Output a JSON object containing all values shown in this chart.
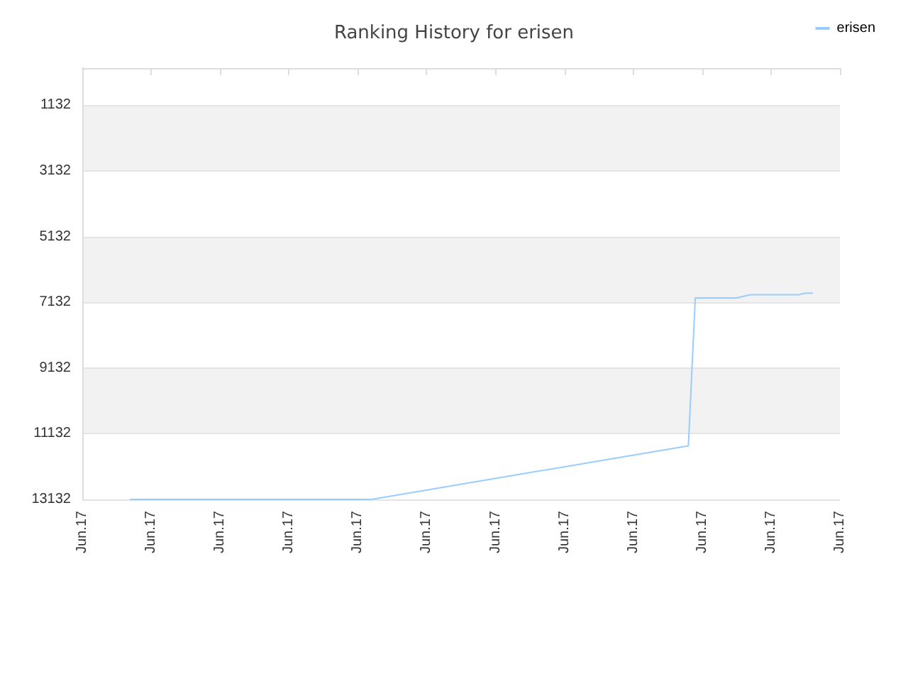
{
  "chart_data": {
    "type": "line",
    "title": "Ranking History for erisen",
    "categories": [
      "Jun.17",
      null,
      null,
      null,
      null,
      null,
      null,
      null,
      null,
      null,
      "Jun.17",
      null,
      null,
      null,
      null,
      null,
      null,
      null,
      null,
      null,
      "Jun.17",
      null,
      null,
      null,
      null,
      null,
      null,
      null,
      null,
      null,
      "Jun.17",
      null,
      null,
      null,
      null,
      null,
      null,
      null,
      null,
      null,
      "Jun.17",
      null,
      null,
      null,
      null,
      null,
      null,
      null,
      null,
      null,
      "Jun.17",
      null,
      null,
      null,
      null,
      null,
      null,
      null,
      null,
      null,
      "Jun.17",
      null,
      null,
      null,
      null,
      null,
      null,
      null,
      null,
      null,
      "Jun.17",
      null,
      null,
      null,
      null,
      null,
      null,
      null,
      null,
      null,
      "Jun.17",
      null,
      null,
      null,
      null,
      null,
      null,
      null,
      null,
      null,
      "Jun.17",
      null,
      null,
      null,
      null,
      null,
      null,
      null,
      null,
      null,
      "Jun.17",
      null,
      null,
      null,
      null,
      null,
      null,
      null,
      null,
      null,
      "Jun.17"
    ],
    "series": [
      {
        "name": "erisen",
        "color": "#99ccff",
        "values": [
          null,
          null,
          null,
          null,
          null,
          null,
          null,
          13132,
          null,
          null,
          null,
          null,
          null,
          null,
          null,
          null,
          null,
          null,
          null,
          null,
          null,
          null,
          null,
          null,
          null,
          null,
          null,
          null,
          null,
          null,
          null,
          null,
          null,
          null,
          null,
          null,
          null,
          null,
          null,
          null,
          null,
          null,
          13132,
          null,
          null,
          null,
          null,
          null,
          null,
          null,
          null,
          null,
          null,
          null,
          null,
          null,
          null,
          null,
          null,
          null,
          null,
          null,
          null,
          null,
          null,
          null,
          null,
          null,
          null,
          null,
          null,
          null,
          null,
          null,
          null,
          null,
          null,
          null,
          null,
          null,
          null,
          null,
          null,
          null,
          null,
          null,
          null,
          null,
          11500,
          7000,
          null,
          null,
          null,
          null,
          null,
          7000,
          null,
          6900,
          null,
          null,
          null,
          null,
          null,
          null,
          6900,
          6850,
          6850,
          null,
          null,
          null,
          null
        ]
      }
    ],
    "ylim": [
      13132,
      0
    ],
    "yticks": [
      1132,
      3132,
      5132,
      7132,
      9132,
      11132,
      13132
    ],
    "grid": "y",
    "legend": "top right",
    "marker": "none",
    "line_style": "solid"
  }
}
